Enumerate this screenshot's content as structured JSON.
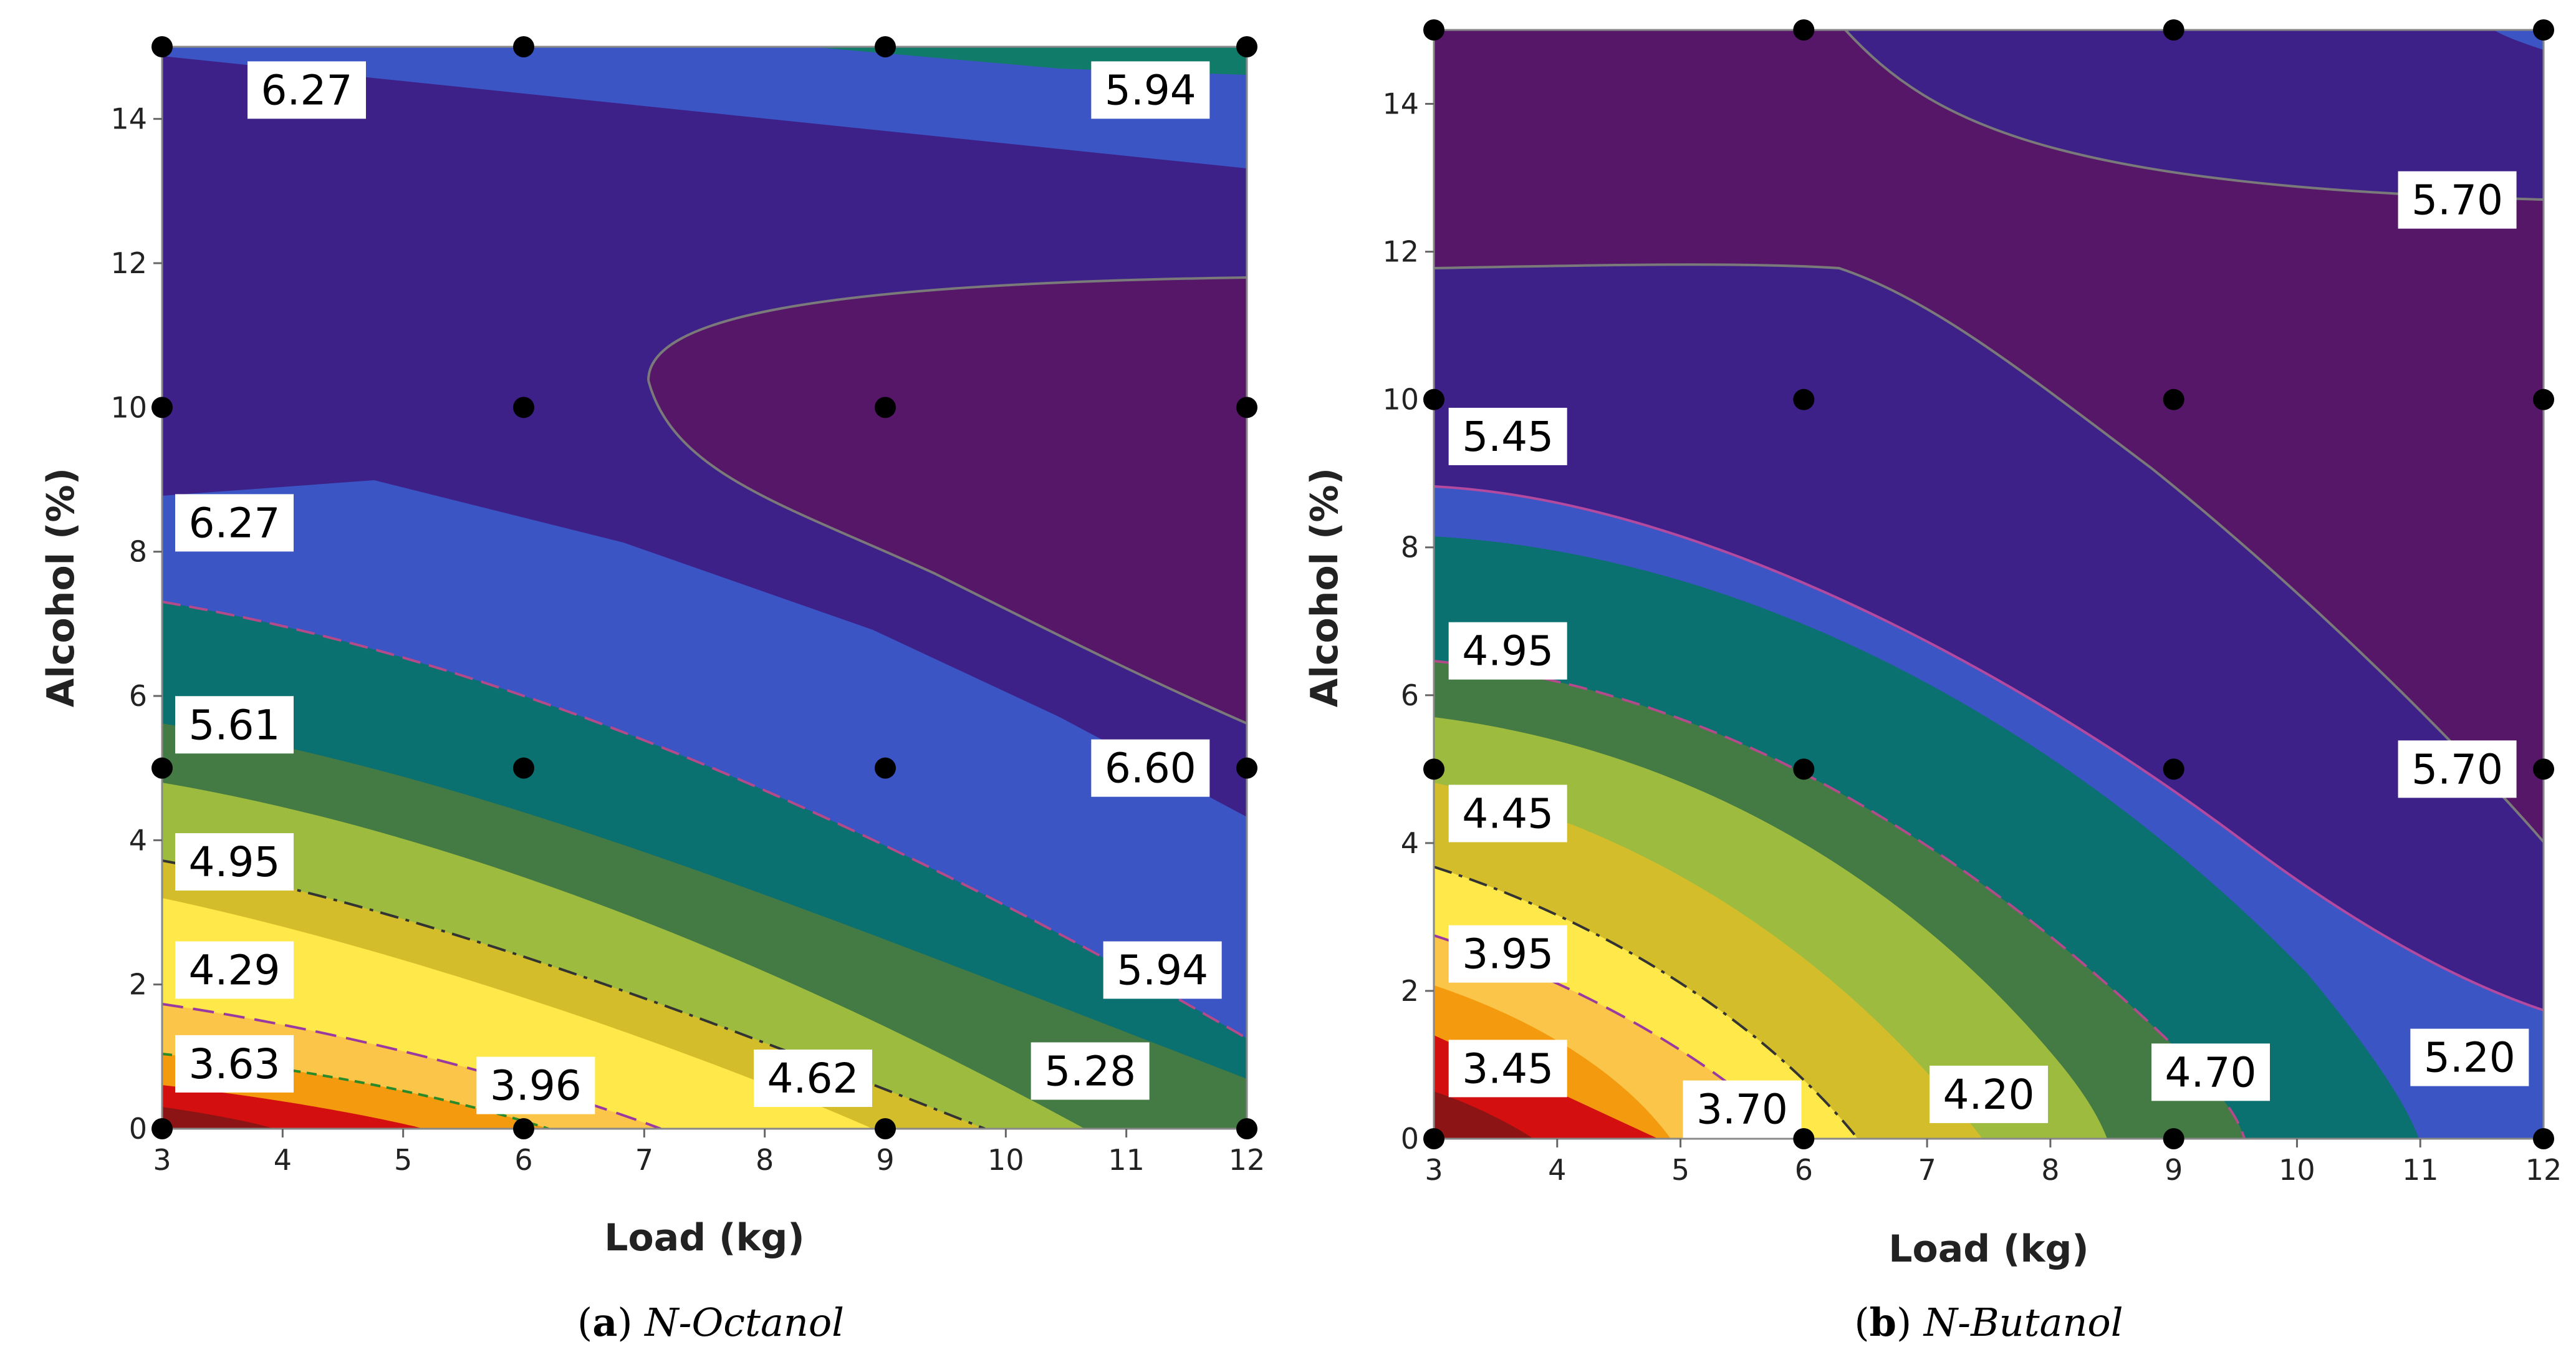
{
  "chart_data": [
    {
      "type": "contour",
      "panel_letter": "a",
      "panel_name": "N-Octanol",
      "xlabel": "Load (kg)",
      "ylabel": "Alcohol (%)",
      "xlim": [
        3,
        12
      ],
      "ylim": [
        0,
        15
      ],
      "xticks": [
        "3",
        "4",
        "5",
        "6",
        "7",
        "8",
        "9",
        "10",
        "11",
        "12"
      ],
      "yticks": [
        "0",
        "2",
        "4",
        "6",
        "8",
        "10",
        "12",
        "14"
      ],
      "design_points": [
        [
          3,
          0
        ],
        [
          6,
          0
        ],
        [
          9,
          0
        ],
        [
          12,
          0
        ],
        [
          3,
          5
        ],
        [
          6,
          5
        ],
        [
          9,
          5
        ],
        [
          12,
          5
        ],
        [
          3,
          10
        ],
        [
          6,
          10
        ],
        [
          9,
          10
        ],
        [
          12,
          10
        ],
        [
          3,
          15
        ],
        [
          6,
          15
        ],
        [
          9,
          15
        ],
        [
          12,
          15
        ]
      ],
      "contour_labels": [
        {
          "text": "6.27",
          "x": 4.2,
          "y": 14.4
        },
        {
          "text": "5.94",
          "x": 11.2,
          "y": 14.4
        },
        {
          "text": "6.27",
          "x": 3.6,
          "y": 8.4
        },
        {
          "text": "5.61",
          "x": 3.6,
          "y": 5.6
        },
        {
          "text": "6.60",
          "x": 11.2,
          "y": 5.0
        },
        {
          "text": "4.95",
          "x": 3.6,
          "y": 3.7
        },
        {
          "text": "4.29",
          "x": 3.6,
          "y": 2.2
        },
        {
          "text": "5.94",
          "x": 11.3,
          "y": 2.2
        },
        {
          "text": "3.63",
          "x": 3.6,
          "y": 0.9
        },
        {
          "text": "3.96",
          "x": 6.1,
          "y": 0.6
        },
        {
          "text": "4.62",
          "x": 8.4,
          "y": 0.7
        },
        {
          "text": "5.28",
          "x": 10.7,
          "y": 0.8
        }
      ]
    },
    {
      "type": "contour",
      "panel_letter": "b",
      "panel_name": "N-Butanol",
      "xlabel": "Load (kg)",
      "ylabel": "Alcohol (%)",
      "xlim": [
        3,
        12
      ],
      "ylim": [
        0,
        15
      ],
      "xticks": [
        "3",
        "4",
        "5",
        "6",
        "7",
        "8",
        "9",
        "10",
        "11",
        "12"
      ],
      "yticks": [
        "0",
        "2",
        "4",
        "6",
        "8",
        "10",
        "12",
        "14"
      ],
      "design_points": [
        [
          3,
          0
        ],
        [
          6,
          0
        ],
        [
          9,
          0
        ],
        [
          12,
          0
        ],
        [
          3,
          5
        ],
        [
          6,
          5
        ],
        [
          9,
          5
        ],
        [
          12,
          5
        ],
        [
          3,
          10
        ],
        [
          6,
          10
        ],
        [
          9,
          10
        ],
        [
          12,
          10
        ],
        [
          3,
          15
        ],
        [
          6,
          15
        ],
        [
          9,
          15
        ],
        [
          12,
          15
        ]
      ],
      "contour_labels": [
        {
          "text": "5.70",
          "x": 11.3,
          "y": 12.7
        },
        {
          "text": "5.45",
          "x": 3.6,
          "y": 9.5
        },
        {
          "text": "4.95",
          "x": 3.6,
          "y": 6.6
        },
        {
          "text": "5.70",
          "x": 11.3,
          "y": 5.0
        },
        {
          "text": "4.45",
          "x": 3.6,
          "y": 4.4
        },
        {
          "text": "3.95",
          "x": 3.6,
          "y": 2.5
        },
        {
          "text": "5.20",
          "x": 11.4,
          "y": 1.1
        },
        {
          "text": "3.45",
          "x": 3.6,
          "y": 0.95
        },
        {
          "text": "4.70",
          "x": 9.3,
          "y": 0.9
        },
        {
          "text": "4.20",
          "x": 7.5,
          "y": 0.6
        },
        {
          "text": "3.70",
          "x": 5.5,
          "y": 0.4
        }
      ]
    }
  ]
}
